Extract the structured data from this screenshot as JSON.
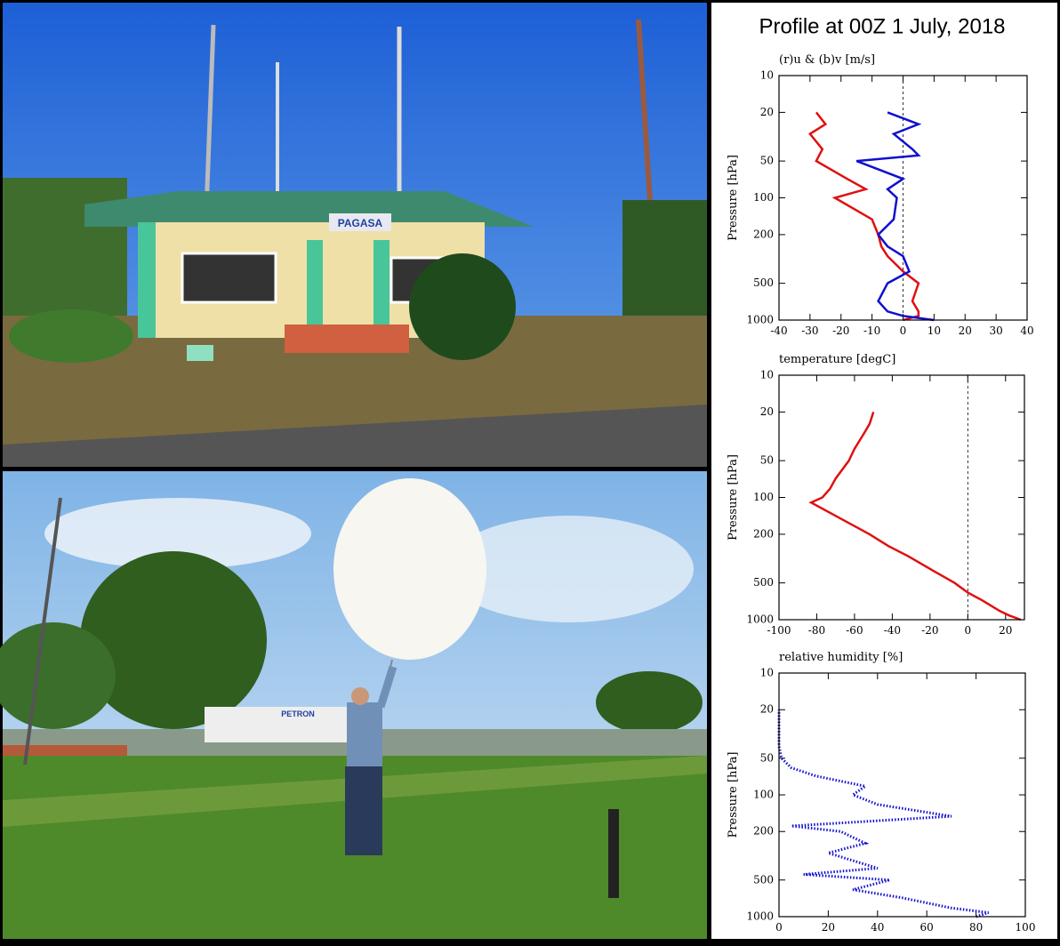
{
  "title": "Profile at 00Z 1 July, 2018",
  "photos": {
    "sign": "PAGASA",
    "truck": "PETRON"
  },
  "chart_data": [
    {
      "type": "line",
      "title": "(r)u & (b)v [m/s]",
      "y_label": "Pressure [hPa]",
      "xlim": [
        -40,
        40
      ],
      "xticks": [
        -40,
        -30,
        -20,
        -10,
        0,
        10,
        20,
        30,
        40
      ],
      "ylim": [
        1000,
        10
      ],
      "yticks": [
        10,
        20,
        50,
        100,
        200,
        500,
        1000
      ],
      "log_y": true,
      "zero_line": true,
      "series": [
        {
          "color": "#e01010",
          "line_style": "solid",
          "x": [
            0,
            5,
            5,
            3,
            5,
            0,
            -5,
            -7,
            -8,
            -10,
            -22,
            -12,
            -18,
            -28,
            -26,
            -30,
            -25,
            -28
          ],
          "y": [
            1000,
            925,
            850,
            700,
            500,
            400,
            300,
            250,
            200,
            150,
            100,
            85,
            70,
            50,
            40,
            30,
            25,
            20
          ]
        },
        {
          "color": "#1010d0",
          "line_style": "solid",
          "x": [
            10,
            0,
            -5,
            -8,
            -5,
            2,
            0,
            -5,
            -8,
            -3,
            -2,
            -5,
            0,
            -15,
            5,
            3,
            -3,
            5,
            -5
          ],
          "y": [
            1000,
            925,
            850,
            700,
            500,
            400,
            300,
            250,
            200,
            150,
            100,
            85,
            70,
            50,
            45,
            40,
            30,
            25,
            20
          ]
        }
      ]
    },
    {
      "type": "line",
      "title": "temperature [degC]",
      "y_label": "Pressure [hPa]",
      "xlim": [
        -100,
        30
      ],
      "xticks": [
        -100,
        -80,
        -60,
        -40,
        -20,
        0,
        20
      ],
      "ylim": [
        1000,
        10
      ],
      "yticks": [
        10,
        20,
        50,
        100,
        200,
        500,
        1000
      ],
      "log_y": true,
      "zero_line": true,
      "series": [
        {
          "color": "#e01010",
          "line_style": "solid",
          "x": [
            28,
            22,
            17,
            8,
            0,
            -7,
            -18,
            -32,
            -42,
            -52,
            -67,
            -83,
            -77,
            -73,
            -70,
            -63,
            -60,
            -55,
            -52,
            -50
          ],
          "y": [
            1000,
            925,
            850,
            700,
            600,
            500,
            400,
            300,
            250,
            200,
            150,
            110,
            100,
            85,
            70,
            50,
            40,
            30,
            25,
            20
          ]
        }
      ]
    },
    {
      "type": "line",
      "title": "relative humidity [%]",
      "y_label": "Pressure [hPa]",
      "xlim": [
        0,
        100
      ],
      "xticks": [
        0,
        20,
        40,
        60,
        80,
        100
      ],
      "ylim": [
        1000,
        10
      ],
      "yticks": [
        10,
        20,
        50,
        100,
        200,
        500,
        1000
      ],
      "log_y": true,
      "zero_line": false,
      "series": [
        {
          "color": "#1010d0",
          "line_style": "dotted",
          "x": [
            80,
            85,
            70,
            50,
            30,
            45,
            10,
            40,
            20,
            35,
            25,
            5,
            70,
            40,
            30,
            35,
            15,
            5,
            1,
            0,
            0
          ],
          "y": [
            1000,
            925,
            850,
            700,
            600,
            500,
            450,
            400,
            300,
            250,
            200,
            180,
            150,
            120,
            100,
            85,
            70,
            60,
            50,
            40,
            20
          ]
        }
      ]
    }
  ]
}
